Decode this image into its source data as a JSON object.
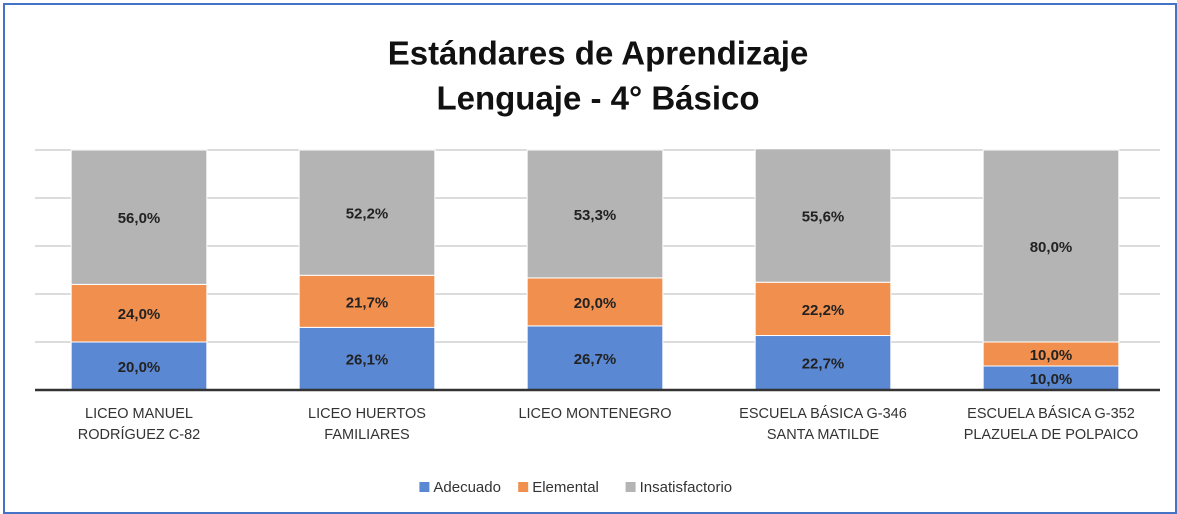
{
  "chart_data": {
    "type": "stacked_bar",
    "title": [
      "Estándares de Aprendizaje",
      "Lenguaje - 4° Básico"
    ],
    "categories": [
      [
        "LICEO MANUEL",
        "RODRÍGUEZ C-82"
      ],
      [
        "LICEO HUERTOS",
        "FAMILIARES"
      ],
      [
        "LICEO MONTENEGRO"
      ],
      [
        "ESCUELA BÁSICA G-346",
        "SANTA MATILDE"
      ],
      [
        "ESCUELA BÁSICA G-352",
        "PLAZUELA DE POLPAICO"
      ]
    ],
    "series": [
      {
        "name": "Adecuado",
        "color": "#5b88d3",
        "values": [
          20.0,
          26.1,
          26.7,
          22.7,
          10.0
        ],
        "value_labels": [
          "20,0%",
          "26,1%",
          "26,7%",
          "22,7%",
          "10,0%"
        ]
      },
      {
        "name": "Elemental",
        "color": "#f08f4e",
        "values": [
          24.0,
          21.7,
          20.0,
          22.2,
          10.0
        ],
        "value_labels": [
          "24,0%",
          "21,7%",
          "20,0%",
          "22,2%",
          "10,0%"
        ]
      },
      {
        "name": "Insatisfactorio",
        "color": "#b4b4b4",
        "values": [
          56.0,
          52.2,
          53.3,
          55.6,
          80.0
        ],
        "value_labels": [
          "56,0%",
          "52,2%",
          "53,3%",
          "55,6%",
          "80,0%"
        ]
      }
    ],
    "ylim": [
      0,
      100
    ],
    "yticks": [
      0,
      20,
      40,
      60,
      80,
      100
    ],
    "grid": true,
    "legend": "bottom"
  }
}
